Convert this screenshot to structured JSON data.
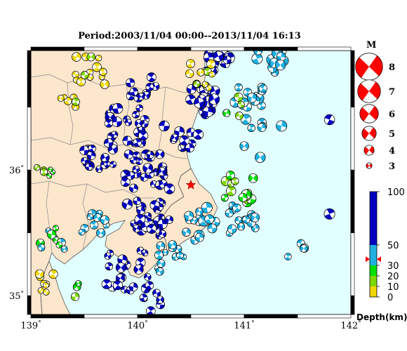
{
  "title": "Period:2003/11/04 00:00--2013/11/04 16:13",
  "map": {
    "lon_range": [
      139,
      142
    ],
    "lat_range": [
      34.85,
      36.95
    ],
    "land_color": "#fce6cc",
    "sea_color": "#e2ffff",
    "x_ticks": [
      {
        "lon": 139,
        "label": "139"
      },
      {
        "lon": 140,
        "label": "140"
      },
      {
        "lon": 141,
        "label": "141"
      },
      {
        "lon": 142,
        "label": "142"
      }
    ],
    "y_ticks": [
      {
        "lat": 35,
        "label": "35"
      },
      {
        "lat": 36,
        "label": "36"
      }
    ],
    "degree_symbol": "°",
    "epicenter_star": {
      "lon": 140.5,
      "lat": 35.88,
      "color": "#ff0000"
    }
  },
  "magnitude_legend": {
    "title": "M",
    "items": [
      {
        "label": "8"
      },
      {
        "label": "7"
      },
      {
        "label": "6"
      },
      {
        "label": "5"
      },
      {
        "label": "4"
      },
      {
        "label": "3"
      }
    ],
    "color": "#ff0000"
  },
  "depth_colorbar": {
    "title": "Depth(km)",
    "tick_labels": [
      "100",
      "50",
      "30",
      "20",
      "10",
      "0"
    ],
    "bands": [
      {
        "from": 0,
        "to": 10,
        "color": "#f0d800"
      },
      {
        "from": 10,
        "to": 20,
        "color": "#80d800"
      },
      {
        "from": 20,
        "to": 30,
        "color": "#00e000"
      },
      {
        "from": 30,
        "to": 50,
        "color": "#20b0e0"
      },
      {
        "from": 50,
        "to": 100,
        "color": "#0000c0"
      }
    ],
    "marker_depth": 36,
    "marker_color": "#ff0000"
  },
  "chart_data": {
    "type": "scatter",
    "description_units": "lon (deg E), lat (deg N), magnitude, depth (km)",
    "clusters": [
      {
        "lon": 139.55,
        "lat": 36.8,
        "depth": 5,
        "count": 14,
        "spread": 0.15,
        "mag": 4.0
      },
      {
        "lon": 139.35,
        "lat": 36.55,
        "depth": 5,
        "count": 6,
        "spread": 0.08,
        "mag": 3.8
      },
      {
        "lon": 140.05,
        "lat": 36.65,
        "depth": 60,
        "count": 10,
        "spread": 0.12,
        "mag": 4.2
      },
      {
        "lon": 139.9,
        "lat": 36.35,
        "depth": 60,
        "count": 22,
        "spread": 0.18,
        "mag": 4.2
      },
      {
        "lon": 139.65,
        "lat": 36.1,
        "depth": 60,
        "count": 18,
        "spread": 0.15,
        "mag": 4.1
      },
      {
        "lon": 140.05,
        "lat": 36.0,
        "depth": 60,
        "count": 26,
        "spread": 0.2,
        "mag": 4.2
      },
      {
        "lon": 140.1,
        "lat": 35.6,
        "depth": 60,
        "count": 30,
        "spread": 0.2,
        "mag": 4.3
      },
      {
        "lon": 139.9,
        "lat": 35.2,
        "depth": 60,
        "count": 22,
        "spread": 0.22,
        "mag": 4.1
      },
      {
        "lon": 140.45,
        "lat": 36.25,
        "depth": 60,
        "count": 10,
        "spread": 0.12,
        "mag": 4.2
      },
      {
        "lon": 140.6,
        "lat": 36.55,
        "depth": 60,
        "count": 24,
        "spread": 0.14,
        "mag": 4.4
      },
      {
        "lon": 140.75,
        "lat": 36.85,
        "depth": 60,
        "count": 14,
        "spread": 0.12,
        "mag": 4.4
      },
      {
        "lon": 141.05,
        "lat": 36.6,
        "depth": 40,
        "count": 14,
        "spread": 0.14,
        "mag": 4.3
      },
      {
        "lon": 141.25,
        "lat": 36.85,
        "depth": 40,
        "count": 14,
        "spread": 0.14,
        "mag": 4.4
      },
      {
        "lon": 141.05,
        "lat": 36.3,
        "depth": 40,
        "count": 6,
        "spread": 0.14,
        "mag": 4.2
      },
      {
        "lon": 140.6,
        "lat": 36.75,
        "depth": 5,
        "count": 12,
        "spread": 0.12,
        "mag": 4.0
      },
      {
        "lon": 140.9,
        "lat": 36.5,
        "depth": 20,
        "count": 4,
        "spread": 0.1,
        "mag": 4.0
      },
      {
        "lon": 140.95,
        "lat": 35.85,
        "depth": 20,
        "count": 14,
        "spread": 0.14,
        "mag": 4.1
      },
      {
        "lon": 141.0,
        "lat": 35.6,
        "depth": 40,
        "count": 16,
        "spread": 0.16,
        "mag": 4.2
      },
      {
        "lon": 140.6,
        "lat": 35.55,
        "depth": 40,
        "count": 14,
        "spread": 0.15,
        "mag": 4.2
      },
      {
        "lon": 140.35,
        "lat": 35.3,
        "depth": 40,
        "count": 12,
        "spread": 0.16,
        "mag": 4.0
      },
      {
        "lon": 139.6,
        "lat": 35.55,
        "depth": 40,
        "count": 10,
        "spread": 0.14,
        "mag": 3.9
      },
      {
        "lon": 139.2,
        "lat": 35.45,
        "depth": 30,
        "count": 10,
        "spread": 0.12,
        "mag": 3.9
      },
      {
        "lon": 139.15,
        "lat": 35.95,
        "depth": 20,
        "count": 6,
        "spread": 0.1,
        "mag": 3.7
      },
      {
        "lon": 139.15,
        "lat": 35.1,
        "depth": 5,
        "count": 8,
        "spread": 0.1,
        "mag": 3.9
      },
      {
        "lon": 139.4,
        "lat": 35.05,
        "depth": 20,
        "count": 4,
        "spread": 0.08,
        "mag": 3.8
      },
      {
        "lon": 140.15,
        "lat": 34.95,
        "depth": 60,
        "count": 6,
        "spread": 0.1,
        "mag": 4.0
      },
      {
        "lon": 141.5,
        "lat": 35.35,
        "depth": 40,
        "count": 4,
        "spread": 0.1,
        "mag": 4.2
      }
    ],
    "notable_events": [
      {
        "lon": 141.8,
        "lat": 36.4,
        "mag": 4.6,
        "depth": 60
      },
      {
        "lon": 141.8,
        "lat": 35.65,
        "mag": 4.7,
        "depth": 60
      },
      {
        "lon": 141.35,
        "lat": 36.35,
        "mag": 4.7,
        "depth": 40
      },
      {
        "lon": 141.15,
        "lat": 36.1,
        "mag": 4.6,
        "depth": 40
      },
      {
        "lon": 140.25,
        "lat": 36.35,
        "mag": 4.6,
        "depth": 60
      },
      {
        "lon": 140.3,
        "lat": 35.85,
        "mag": 4.6,
        "depth": 60
      },
      {
        "lon": 140.65,
        "lat": 35.7,
        "mag": 4.7,
        "depth": 40
      }
    ]
  }
}
